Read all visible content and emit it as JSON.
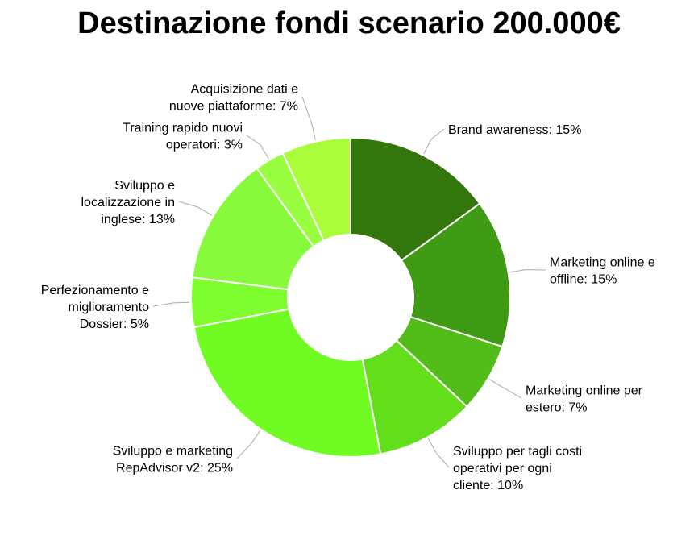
{
  "title": "Destinazione fondi scenario 200.000€",
  "chart_data": {
    "type": "pie",
    "donut": true,
    "title": "Destinazione fondi scenario 200.000€",
    "categories": [
      "Brand awareness",
      "Marketing online e offline",
      "Marketing online per estero",
      "Sviluppo per tagli costi operativi per ogni cliente",
      "Sviluppo e marketing RepAdvisor v2",
      "Perfezionamento e miglioramento Dossier",
      "Sviluppo e localizzazione in inglese",
      "Training rapido nuovi operatori",
      "Acquisizione dati e nuove piattaforme"
    ],
    "values": [
      15,
      15,
      7,
      10,
      25,
      5,
      13,
      3,
      7
    ],
    "labels": [
      [
        "Brand awareness: 15%"
      ],
      [
        "Marketing online e",
        "offline: 15%"
      ],
      [
        "Marketing online per",
        "estero: 7%"
      ],
      [
        "Sviluppo per tagli costi",
        "operativi per ogni",
        "cliente: 10%"
      ],
      [
        "Sviluppo e marketing",
        "RepAdvisor v2: 25%"
      ],
      [
        "Perfezionamento e",
        "miglioramento",
        "Dossier: 5%"
      ],
      [
        "Sviluppo e",
        "localizzazione in",
        "inglese: 13%"
      ],
      [
        "Training rapido nuovi",
        "operatori: 3%"
      ],
      [
        "Acquisizione dati e",
        "nuove piattaforme: 7%"
      ]
    ],
    "colors": [
      "#33760c",
      "#3f9a14",
      "#52bc18",
      "#62de1a",
      "#70fb22",
      "#7efe2f",
      "#88fa3c",
      "#98fe3f",
      "#a9fd3b"
    ],
    "unit": "%"
  }
}
